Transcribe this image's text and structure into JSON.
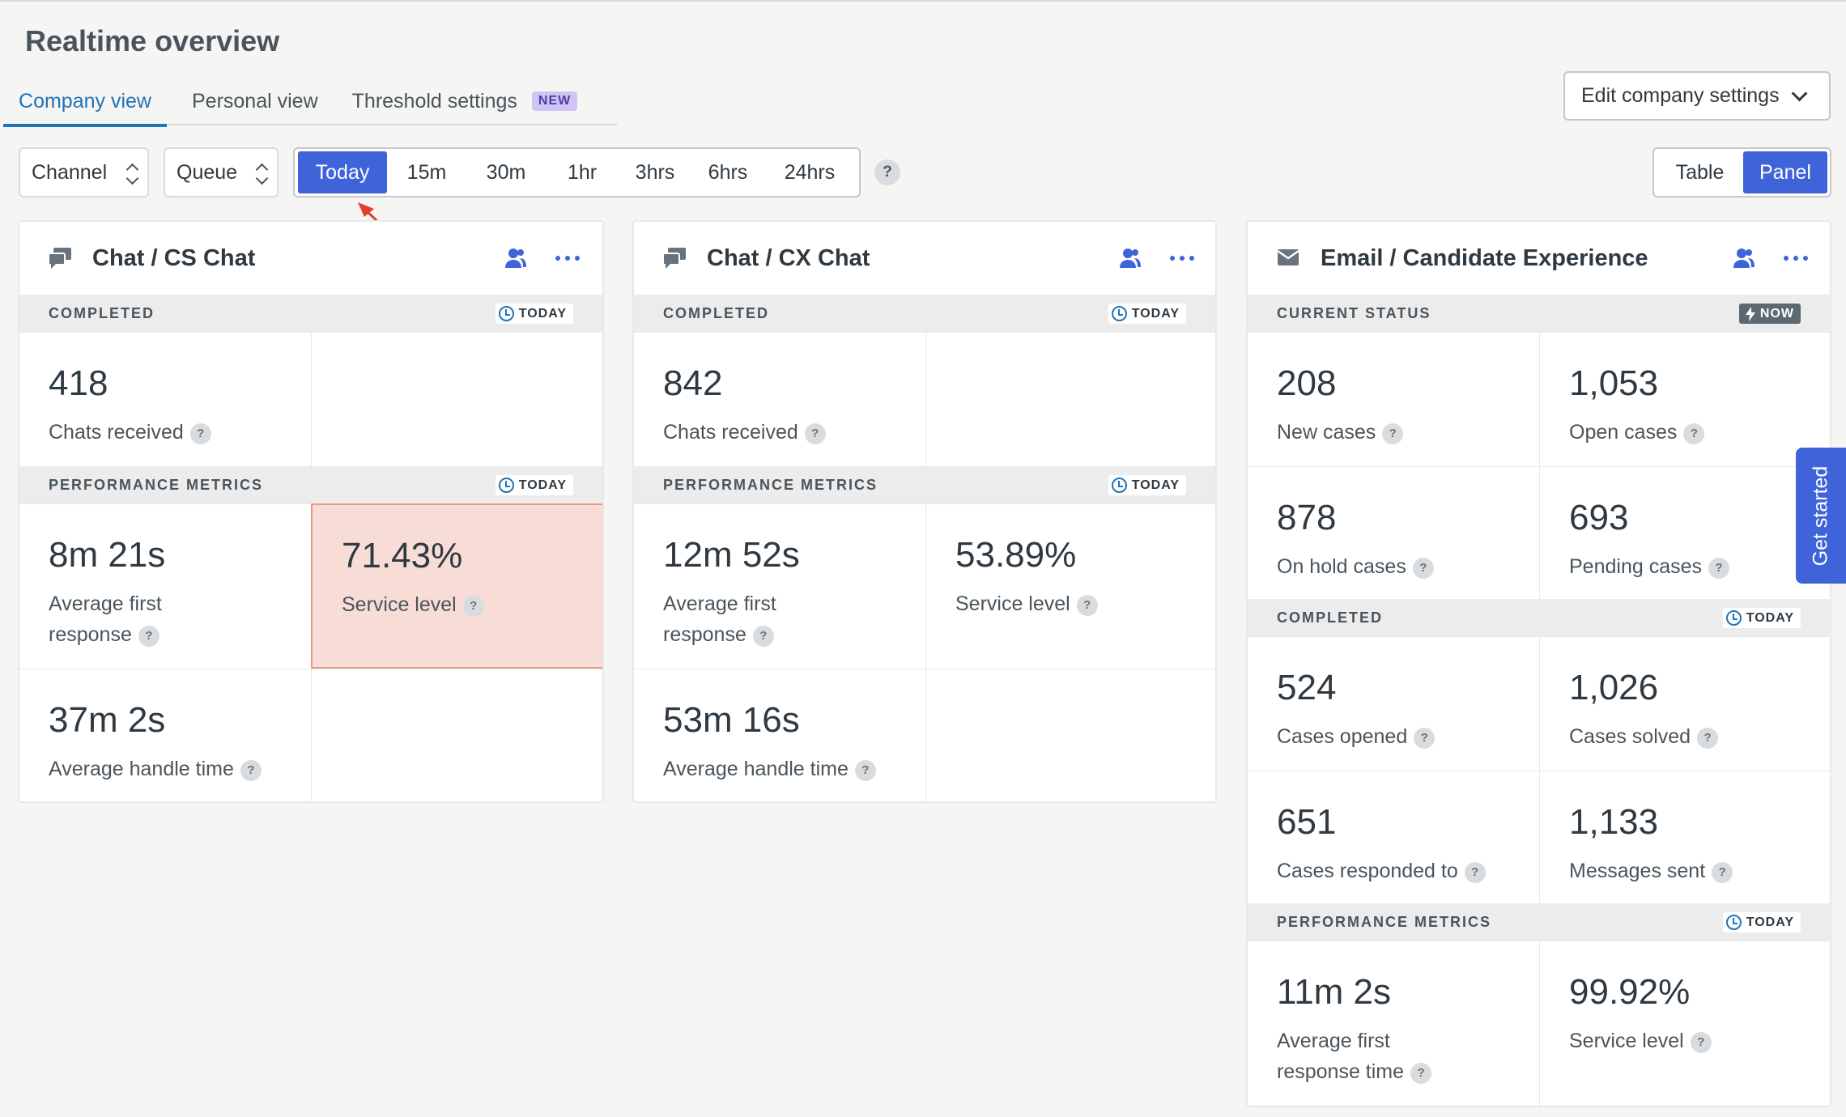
{
  "page": {
    "title": "Realtime overview"
  },
  "tabs": [
    {
      "label": "Company view"
    },
    {
      "label": "Personal view"
    },
    {
      "label": "Threshold settings",
      "badge": "NEW"
    }
  ],
  "edit_settings_label": "Edit company settings",
  "filters": {
    "channel": "Channel",
    "queue": "Queue",
    "ranges": [
      "Today",
      "15m",
      "30m",
      "1hr",
      "3hrs",
      "6hrs",
      "24hrs"
    ],
    "active_range": "Today",
    "help": "?"
  },
  "view_toggle": {
    "table": "Table",
    "panel": "Panel",
    "active": "Panel"
  },
  "cards": [
    {
      "title": "Chat / CS Chat",
      "sections": [
        {
          "label": "COMPLETED",
          "badge": "TODAY"
        },
        {
          "label": "PERFORMANCE METRICS",
          "badge": "TODAY"
        }
      ],
      "metrics": [
        {
          "value": "418",
          "label": "Chats received"
        },
        {
          "value": "8m 21s",
          "label": "Average first response"
        },
        {
          "value": "71.43%",
          "label": "Service level"
        },
        {
          "value": "37m 2s",
          "label": "Average handle time"
        }
      ]
    },
    {
      "title": "Chat / CX Chat",
      "sections": [
        {
          "label": "COMPLETED",
          "badge": "TODAY"
        },
        {
          "label": "PERFORMANCE METRICS",
          "badge": "TODAY"
        }
      ],
      "metrics": [
        {
          "value": "842",
          "label": "Chats received"
        },
        {
          "value": "12m 52s",
          "label": "Average first response"
        },
        {
          "value": "53.89%",
          "label": "Service level"
        },
        {
          "value": "53m 16s",
          "label": "Average handle time"
        }
      ]
    },
    {
      "title": "Email / Candidate Experience",
      "sections": [
        {
          "label": "CURRENT STATUS",
          "badge": "NOW"
        },
        {
          "label": "COMPLETED",
          "badge": "TODAY"
        },
        {
          "label": "PERFORMANCE METRICS",
          "badge": "TODAY"
        }
      ],
      "metrics": [
        {
          "value": "208",
          "label": "New cases"
        },
        {
          "value": "1,053",
          "label": "Open cases"
        },
        {
          "value": "878",
          "label": "On hold cases"
        },
        {
          "value": "693",
          "label": "Pending cases"
        },
        {
          "value": "524",
          "label": "Cases opened"
        },
        {
          "value": "1,026",
          "label": "Cases solved"
        },
        {
          "value": "651",
          "label": "Cases responded to"
        },
        {
          "value": "1,133",
          "label": "Messages sent"
        },
        {
          "value": "11m 2s",
          "label": "Average first response time"
        },
        {
          "value": "99.92%",
          "label": "Service level"
        }
      ]
    }
  ],
  "get_started": "Get started",
  "icons": [
    "chat-icon",
    "email-icon",
    "agents-icon",
    "more-icon",
    "clock-icon",
    "lightning-icon",
    "help-icon",
    "chevron-down-icon",
    "sort-icon"
  ],
  "colors": {
    "accent": "#3f63d9",
    "link": "#1f73b7",
    "alert_bg": "#f8ddd6",
    "alert_border": "#e59a84"
  }
}
